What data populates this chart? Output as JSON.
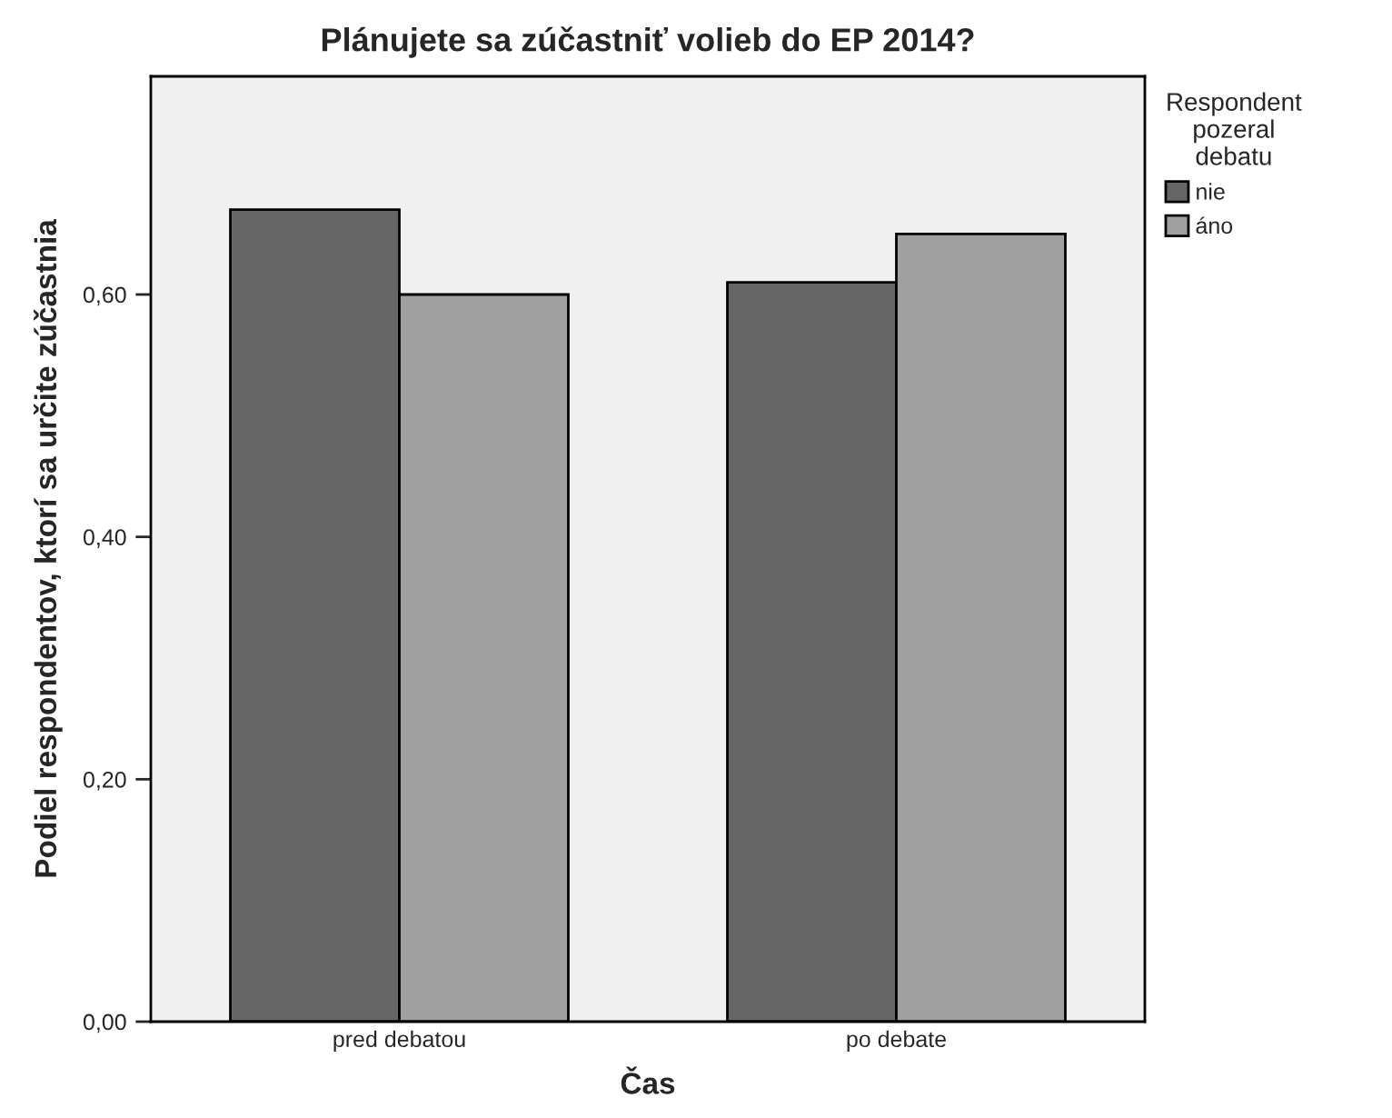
{
  "chart_data": {
    "type": "bar",
    "title": "Plánujete sa zúčastniť volieb do EP 2014?",
    "xlabel": "Čas",
    "ylabel": "Podiel respondentov, ktorí sa určite zúčastnia",
    "legend_title": "Respondent\npozeral\ndebatu",
    "categories": [
      "pred debatou",
      "po debate"
    ],
    "series": [
      {
        "name": "nie",
        "color": "#666666",
        "values": [
          0.67,
          0.61
        ]
      },
      {
        "name": "áno",
        "color": "#a0a0a0",
        "values": [
          0.6,
          0.65
        ]
      }
    ],
    "ylim": [
      0,
      0.78
    ],
    "yticks": [
      {
        "value": 0,
        "label": "0,00"
      },
      {
        "value": 0.2,
        "label": "0,20"
      },
      {
        "value": 0.4,
        "label": "0,40"
      },
      {
        "value": 0.6,
        "label": "0,60"
      }
    ],
    "legend": "top right",
    "grid": false
  }
}
